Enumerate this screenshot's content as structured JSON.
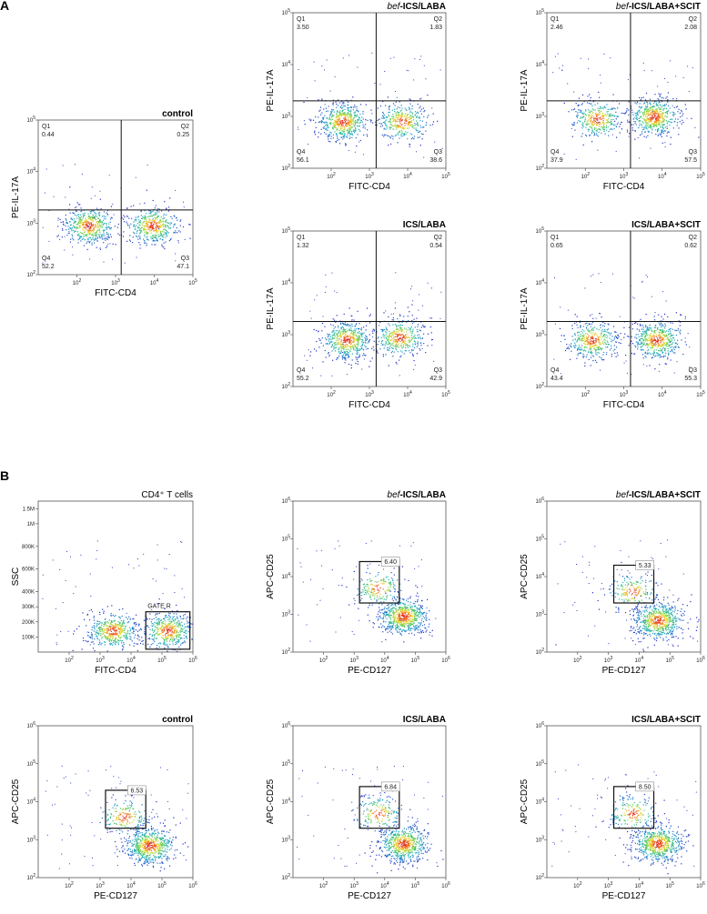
{
  "figure": {
    "panel_a_label": "A",
    "panel_b_label": "B"
  },
  "chart_data": [
    {
      "type": "scatter",
      "panel": "A",
      "title": "control",
      "xlabel": "FITC-CD4",
      "ylabel": "PE-IL-17A",
      "xscale": "log",
      "yscale": "log",
      "xlim": [
        10,
        100000
      ],
      "ylim": [
        100,
        100000
      ],
      "xticks": [
        100,
        1000,
        10000,
        100000
      ],
      "yticks": [
        100,
        1000,
        10000,
        100000
      ],
      "quadrant_lines": {
        "x": 1400,
        "y": 1800
      },
      "quadrants": [
        {
          "name": "Q1",
          "value": "0.44"
        },
        {
          "name": "Q2",
          "value": "0.25"
        },
        {
          "name": "Q3",
          "value": "47.1"
        },
        {
          "name": "Q4",
          "value": "52.2"
        }
      ],
      "clusters": [
        {
          "x": 200,
          "y": 900,
          "weight": 0.52
        },
        {
          "x": 9000,
          "y": 900,
          "weight": 0.47
        }
      ]
    },
    {
      "type": "scatter",
      "panel": "A",
      "title_italic": "bef",
      "title": "-ICS/LABA",
      "xlabel": "FITC-CD4",
      "ylabel": "PE-IL-17A",
      "xscale": "log",
      "yscale": "log",
      "xlim": [
        10,
        100000
      ],
      "ylim": [
        100,
        100000
      ],
      "xticks": [
        100,
        1000,
        10000,
        100000
      ],
      "yticks": [
        100,
        1000,
        10000,
        100000
      ],
      "quadrant_lines": {
        "x": 1500,
        "y": 2000
      },
      "quadrants": [
        {
          "name": "Q1",
          "value": "3.50"
        },
        {
          "name": "Q2",
          "value": "1.83"
        },
        {
          "name": "Q3",
          "value": "38.6"
        },
        {
          "name": "Q4",
          "value": "56.1"
        }
      ],
      "clusters": [
        {
          "x": 200,
          "y": 800,
          "weight": 0.56
        },
        {
          "x": 7000,
          "y": 800,
          "weight": 0.39
        }
      ]
    },
    {
      "type": "scatter",
      "panel": "A",
      "title_italic": "bef",
      "title": "-ICS/LABA+SCIT",
      "xlabel": "FITC-CD4",
      "ylabel": "PE-IL-17A",
      "xscale": "log",
      "yscale": "log",
      "xlim": [
        10,
        100000
      ],
      "ylim": [
        100,
        100000
      ],
      "xticks": [
        100,
        1000,
        10000,
        100000
      ],
      "yticks": [
        100,
        1000,
        10000,
        100000
      ],
      "quadrant_lines": {
        "x": 1500,
        "y": 2000
      },
      "quadrants": [
        {
          "name": "Q1",
          "value": "2.46"
        },
        {
          "name": "Q2",
          "value": "2.08"
        },
        {
          "name": "Q3",
          "value": "57.5"
        },
        {
          "name": "Q4",
          "value": "37.9"
        }
      ],
      "clusters": [
        {
          "x": 200,
          "y": 900,
          "weight": 0.38
        },
        {
          "x": 6000,
          "y": 1000,
          "weight": 0.58
        }
      ]
    },
    {
      "type": "scatter",
      "panel": "A",
      "title": "ICS/LABA",
      "xlabel": "FITC-CD4",
      "ylabel": "PE-IL-17A",
      "xscale": "log",
      "yscale": "log",
      "xlim": [
        10,
        100000
      ],
      "ylim": [
        100,
        100000
      ],
      "xticks": [
        100,
        1000,
        10000,
        100000
      ],
      "yticks": [
        100,
        1000,
        10000,
        100000
      ],
      "quadrant_lines": {
        "x": 1500,
        "y": 1800
      },
      "quadrants": [
        {
          "name": "Q1",
          "value": "1.32"
        },
        {
          "name": "Q2",
          "value": "0.54"
        },
        {
          "name": "Q3",
          "value": "42.9"
        },
        {
          "name": "Q4",
          "value": "55.2"
        }
      ],
      "clusters": [
        {
          "x": 250,
          "y": 800,
          "weight": 0.55
        },
        {
          "x": 6000,
          "y": 900,
          "weight": 0.43
        }
      ]
    },
    {
      "type": "scatter",
      "panel": "A",
      "title": "ICS/LABA+SCIT",
      "xlabel": "FITC-CD4",
      "ylabel": "PE-IL-17A",
      "xscale": "log",
      "yscale": "log",
      "xlim": [
        10,
        100000
      ],
      "ylim": [
        100,
        100000
      ],
      "xticks": [
        100,
        1000,
        10000,
        100000
      ],
      "yticks": [
        100,
        1000,
        10000,
        100000
      ],
      "quadrant_lines": {
        "x": 1500,
        "y": 1800
      },
      "quadrants": [
        {
          "name": "Q1",
          "value": "0.65"
        },
        {
          "name": "Q2",
          "value": "0.62"
        },
        {
          "name": "Q3",
          "value": "55.3"
        },
        {
          "name": "Q4",
          "value": "43.4"
        }
      ],
      "clusters": [
        {
          "x": 150,
          "y": 800,
          "weight": 0.43
        },
        {
          "x": 7000,
          "y": 800,
          "weight": 0.55
        }
      ]
    },
    {
      "type": "scatter",
      "panel": "B",
      "title": "CD4⁺ T cells",
      "xlabel": "FITC-CD4",
      "ylabel": "SSC",
      "xscale": "log",
      "yscale": "linear",
      "xlim": [
        10,
        1000000
      ],
      "ylim": [
        0,
        1048576
      ],
      "xticks": [
        100,
        1000,
        10000,
        100000,
        1000000
      ],
      "yticks": [
        "100K",
        "200K",
        "300K",
        "400K",
        "600K",
        "800K",
        "1M",
        "1.5M"
      ],
      "gate": {
        "label": "GATE R",
        "x": [
          30000,
          800000
        ],
        "y": [
          20000,
          280000
        ]
      },
      "clusters": [
        {
          "x": 2500,
          "y": 150000,
          "weight": 0.5
        },
        {
          "x": 150000,
          "y": 150000,
          "weight": 0.5
        }
      ]
    },
    {
      "type": "scatter",
      "panel": "B",
      "title_italic": "bef",
      "title": "-ICS/LABA",
      "xlabel": "PE-CD127",
      "ylabel": "APC-CD25",
      "xscale": "log",
      "yscale": "log",
      "xlim": [
        10,
        1000000
      ],
      "ylim": [
        100,
        1000000
      ],
      "xticks": [
        100,
        1000,
        10000,
        100000,
        1000000
      ],
      "yticks": [
        100,
        1000,
        10000,
        100000,
        1000000
      ],
      "gate": {
        "value": "6.40",
        "x": [
          1500,
          30000
        ],
        "y": [
          2000,
          25000
        ]
      },
      "clusters": [
        {
          "x": 40000,
          "y": 900,
          "weight": 0.7
        },
        {
          "x": 6000,
          "y": 5000,
          "weight": 0.2
        }
      ]
    },
    {
      "type": "scatter",
      "panel": "B",
      "title_italic": "bef",
      "title": "-ICS/LABA+SCIT",
      "xlabel": "PE-CD127",
      "ylabel": "APC-CD25",
      "xscale": "log",
      "yscale": "log",
      "xlim": [
        10,
        1000000
      ],
      "ylim": [
        100,
        1000000
      ],
      "xticks": [
        100,
        1000,
        10000,
        100000,
        1000000
      ],
      "yticks": [
        100,
        1000,
        10000,
        100000,
        1000000
      ],
      "gate": {
        "value": "5.33",
        "x": [
          1500,
          30000
        ],
        "y": [
          2000,
          20000
        ]
      },
      "clusters": [
        {
          "x": 40000,
          "y": 700,
          "weight": 0.7
        },
        {
          "x": 6000,
          "y": 4000,
          "weight": 0.2
        }
      ]
    },
    {
      "type": "scatter",
      "panel": "B",
      "title": "control",
      "xlabel": "PE-CD127",
      "ylabel": "APC-CD25",
      "xscale": "log",
      "yscale": "log",
      "xlim": [
        10,
        1000000
      ],
      "ylim": [
        100,
        1000000
      ],
      "xticks": [
        100,
        1000,
        10000,
        100000,
        1000000
      ],
      "yticks": [
        100,
        1000,
        10000,
        100000,
        1000000
      ],
      "gate": {
        "value": "6.53",
        "x": [
          1500,
          30000
        ],
        "y": [
          2000,
          20000
        ]
      },
      "clusters": [
        {
          "x": 40000,
          "y": 700,
          "weight": 0.7
        },
        {
          "x": 6000,
          "y": 4000,
          "weight": 0.2
        }
      ]
    },
    {
      "type": "scatter",
      "panel": "B",
      "title": "ICS/LABA",
      "xlabel": "PE-CD127",
      "ylabel": "APC-CD25",
      "xscale": "log",
      "yscale": "log",
      "xlim": [
        10,
        1000000
      ],
      "ylim": [
        100,
        1000000
      ],
      "xticks": [
        100,
        1000,
        10000,
        100000,
        1000000
      ],
      "yticks": [
        100,
        1000,
        10000,
        100000,
        1000000
      ],
      "gate": {
        "value": "6.84",
        "x": [
          1500,
          30000
        ],
        "y": [
          2000,
          25000
        ]
      },
      "clusters": [
        {
          "x": 40000,
          "y": 800,
          "weight": 0.7
        },
        {
          "x": 6000,
          "y": 5000,
          "weight": 0.2
        }
      ]
    },
    {
      "type": "scatter",
      "panel": "B",
      "title": "ICS/LABA+SCIT",
      "xlabel": "PE-CD127",
      "ylabel": "APC-CD25",
      "xscale": "log",
      "yscale": "log",
      "xlim": [
        10,
        1000000
      ],
      "ylim": [
        100,
        1000000
      ],
      "xticks": [
        100,
        1000,
        10000,
        100000,
        1000000
      ],
      "yticks": [
        100,
        1000,
        10000,
        100000,
        1000000
      ],
      "gate": {
        "value": "8.50",
        "x": [
          1500,
          30000
        ],
        "y": [
          2000,
          25000
        ]
      },
      "clusters": [
        {
          "x": 40000,
          "y": 800,
          "weight": 0.7
        },
        {
          "x": 6000,
          "y": 5000,
          "weight": 0.2
        }
      ]
    }
  ]
}
